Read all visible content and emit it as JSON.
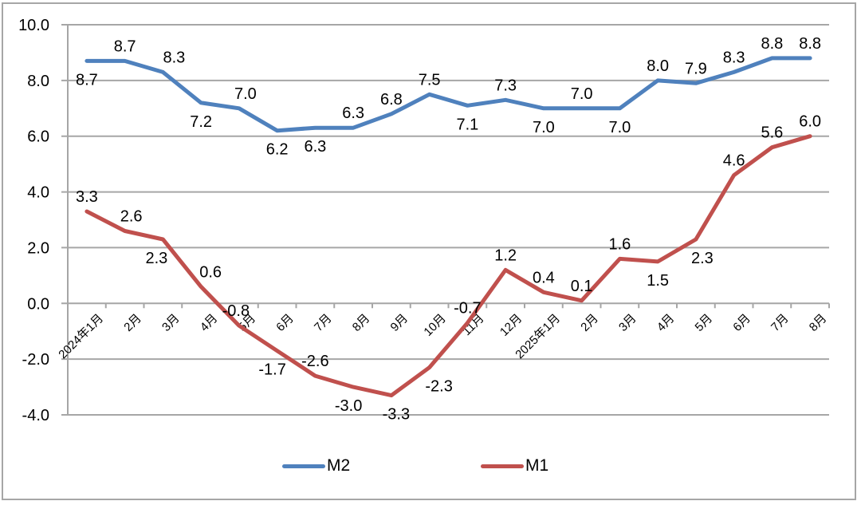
{
  "chart_data": {
    "type": "line",
    "title": "",
    "xlabel": "",
    "ylabel": "",
    "ylim": [
      -4.0,
      10.0
    ],
    "yticks": [
      "10.0",
      "8.0",
      "6.0",
      "4.0",
      "2.0",
      "0.0",
      "-2.0",
      "-4.0"
    ],
    "ytick_values": [
      10,
      8,
      6,
      4,
      2,
      0,
      -2,
      -4
    ],
    "grid": true,
    "legend_position": "bottom",
    "categories": [
      "2024年1月",
      "2月",
      "3月",
      "4月",
      "5月",
      "6月",
      "7月",
      "8月",
      "9月",
      "10月",
      "11月",
      "12月",
      "2025年1月",
      "2月",
      "3月",
      "4月",
      "5月",
      "6月",
      "7月",
      "8月"
    ],
    "series": [
      {
        "name": "M2",
        "color": "#4F81BD",
        "values": [
          8.7,
          8.7,
          8.3,
          7.2,
          7.0,
          6.2,
          6.3,
          6.3,
          6.8,
          7.5,
          7.1,
          7.3,
          7.0,
          7.0,
          7.0,
          8.0,
          7.9,
          8.3,
          8.8,
          8.8
        ],
        "labels": [
          "8.7",
          "8.7",
          "8.3",
          "7.2",
          "7.0",
          "6.2",
          "6.3",
          "6.3",
          "6.8",
          "7.5",
          "7.1",
          "7.3",
          "7.0",
          "7.0",
          "7.0",
          "8.0",
          "7.9",
          "8.3",
          "8.8",
          "8.8"
        ]
      },
      {
        "name": "M1",
        "color": "#C0504D",
        "values": [
          3.3,
          2.6,
          2.3,
          0.6,
          -0.8,
          -1.7,
          -2.6,
          -3.0,
          -3.3,
          -2.3,
          -0.7,
          1.2,
          0.4,
          0.1,
          1.6,
          1.5,
          2.3,
          4.6,
          5.6,
          6.0
        ],
        "labels": [
          "3.3",
          "2.6",
          "2.3",
          "0.6",
          "-0.8",
          "-1.7",
          "-2.6",
          "-3.0",
          "-3.3",
          "-2.3",
          "-0.7",
          "1.2",
          "0.4",
          "0.1",
          "1.6",
          "1.5",
          "2.3",
          "4.6",
          "5.6",
          "6.0"
        ]
      }
    ]
  },
  "legend": {
    "items": [
      {
        "label": "M2",
        "color": "#4F81BD"
      },
      {
        "label": "M1",
        "color": "#C0504D"
      }
    ]
  }
}
